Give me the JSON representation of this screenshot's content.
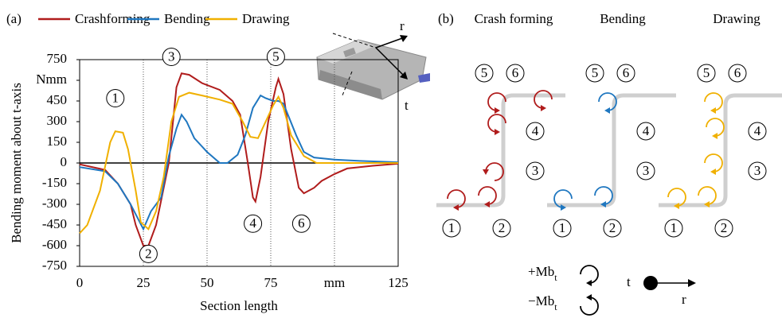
{
  "chart_data": {
    "type": "line",
    "panel_label": "(a)",
    "y_label": "Bending moment about t-axis",
    "x_label": "Section length",
    "xlim": [
      0,
      125
    ],
    "xticks": [
      0,
      25,
      50,
      75,
      {
        "value": 100,
        "label": "mm"
      },
      125
    ],
    "ylim": [
      -750,
      750
    ],
    "yticks": [
      750,
      {
        "value": 600,
        "label": "Nmm"
      },
      450,
      300,
      150,
      0,
      -150,
      -300,
      -450,
      -600,
      -750
    ],
    "grid": "x",
    "series": [
      {
        "name": "Crashforming",
        "color": "#b01c1c",
        "x": [
          0,
          10,
          15,
          20,
          22,
          25,
          27,
          30,
          35,
          38,
          40,
          43,
          48,
          55,
          60,
          63,
          66,
          68,
          69,
          71,
          74,
          77,
          78,
          80,
          83,
          86,
          88,
          92,
          95,
          100,
          105,
          115,
          125
        ],
        "values": [
          -10,
          -50,
          -150,
          -300,
          -450,
          -600,
          -600,
          -450,
          0,
          550,
          650,
          640,
          580,
          530,
          450,
          350,
          0,
          -250,
          -280,
          -100,
          300,
          550,
          610,
          500,
          100,
          -180,
          -220,
          -180,
          -130,
          -80,
          -40,
          -20,
          -5
        ]
      },
      {
        "name": "Bending",
        "color": "#1f77c0",
        "x": [
          0,
          10,
          15,
          20,
          25,
          28,
          32,
          35,
          38,
          40,
          42,
          45,
          50,
          55,
          58,
          62,
          65,
          68,
          71,
          73,
          76,
          78,
          80,
          85,
          88,
          92,
          100,
          110,
          125
        ],
        "values": [
          -30,
          -60,
          -150,
          -300,
          -480,
          -350,
          -250,
          50,
          250,
          350,
          300,
          180,
          80,
          0,
          0,
          60,
          200,
          400,
          490,
          470,
          450,
          450,
          430,
          200,
          80,
          40,
          25,
          15,
          5
        ]
      },
      {
        "name": "Drawing",
        "color": "#f0b000",
        "x": [
          0,
          3,
          8,
          12,
          14,
          17,
          19,
          22,
          24,
          27,
          30,
          33,
          36,
          39,
          43,
          48,
          55,
          60,
          64,
          67,
          70,
          73,
          76,
          78,
          80,
          83,
          88,
          93,
          125
        ],
        "values": [
          -510,
          -450,
          -200,
          150,
          230,
          220,
          100,
          -200,
          -430,
          -480,
          -350,
          -100,
          300,
          480,
          510,
          490,
          460,
          430,
          300,
          190,
          180,
          300,
          420,
          480,
          400,
          200,
          50,
          0,
          0
        ]
      }
    ],
    "annotations": [
      {
        "text": "1",
        "x": 14,
        "y": 470
      },
      {
        "text": "2",
        "x": 27,
        "y": -660
      },
      {
        "text": "3",
        "x": 36,
        "y": 770
      },
      {
        "text": "4",
        "x": 68,
        "y": -440
      },
      {
        "text": "5",
        "x": 77,
        "y": 770
      },
      {
        "text": "6",
        "x": 87,
        "y": -440
      }
    ],
    "axis_labels": {
      "r": "r",
      "t": "t"
    }
  },
  "diagram": {
    "panel_label": "(b)",
    "columns": [
      {
        "title": "Crash forming",
        "labels": [
          "1",
          "2",
          "3",
          "4",
          "5",
          "6"
        ]
      },
      {
        "title": "Bending",
        "labels": [
          "1",
          "2",
          "3",
          "4",
          "5",
          "6"
        ]
      },
      {
        "title": "Drawing",
        "labels": [
          "1",
          "2",
          "3",
          "4",
          "5",
          "6"
        ]
      }
    ],
    "legend": {
      "positive": "+Mb",
      "negative": "−Mb",
      "subscript": "t",
      "t_axis": "t",
      "r_axis": "r"
    }
  }
}
